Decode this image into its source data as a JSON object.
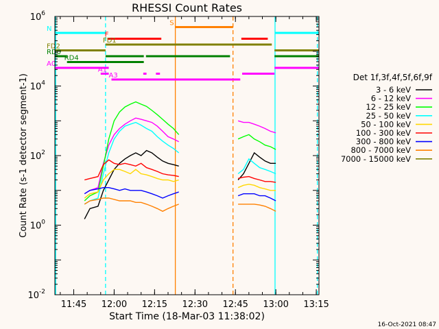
{
  "chart_data": {
    "type": "line",
    "title": "RHESSI Count Rates",
    "xlabel": "Start Time (18-Mar-03 11:38:02)",
    "ylabel": "Count Rate (s-1 detector segment-1)",
    "y_scale": "log",
    "ylim": [
      0.01,
      1000000
    ],
    "xlim_minutes_since_start": [
      0,
      98
    ],
    "x_ticks": [
      {
        "min": 7,
        "label": "11:45"
      },
      {
        "min": 22,
        "label": "12:00"
      },
      {
        "min": 37,
        "label": "12:15"
      },
      {
        "min": 52,
        "label": "12:30"
      },
      {
        "min": 67,
        "label": "12:45"
      },
      {
        "min": 82,
        "label": "13:00"
      },
      {
        "min": 97,
        "label": "13:15"
      }
    ],
    "y_ticks": [
      {
        "value": 0.01,
        "label": "10^-2"
      },
      {
        "value": 1,
        "label": "10^0"
      },
      {
        "value": 100,
        "label": "10^2"
      },
      {
        "value": 10000,
        "label": "10^4"
      },
      {
        "value": 1000000,
        "label": "10^6"
      }
    ],
    "legend_title": "Det 1f,3f,4f,5f,6f,9f",
    "legend_position": "right",
    "series": [
      {
        "name": "3 - 6 keV",
        "color": "#000000",
        "segments": [
          [
            [
              11,
              1.5
            ],
            [
              13,
              3
            ],
            [
              16,
              3.5
            ],
            [
              18,
              10
            ],
            [
              20,
              20
            ],
            [
              22,
              40
            ],
            [
              24,
              60
            ],
            [
              26,
              80
            ],
            [
              28,
              100
            ],
            [
              30,
              120
            ],
            [
              32,
              100
            ],
            [
              34,
              140
            ],
            [
              36,
              120
            ],
            [
              38,
              90
            ],
            [
              40,
              70
            ],
            [
              42,
              60
            ],
            [
              44,
              55
            ],
            [
              46,
              50
            ]
          ],
          [
            [
              68,
              20
            ],
            [
              70,
              30
            ],
            [
              72,
              60
            ],
            [
              74,
              120
            ],
            [
              76,
              90
            ],
            [
              78,
              70
            ],
            [
              80,
              60
            ],
            [
              82,
              60
            ]
          ]
        ]
      },
      {
        "name": "6 - 12 keV",
        "color": "#ff00ff",
        "segments": [
          [
            [
              11,
              8
            ],
            [
              13,
              10
            ],
            [
              16,
              12
            ],
            [
              18,
              60
            ],
            [
              20,
              200
            ],
            [
              22,
              400
            ],
            [
              24,
              600
            ],
            [
              26,
              800
            ],
            [
              28,
              1000
            ],
            [
              30,
              1200
            ],
            [
              32,
              1100
            ],
            [
              34,
              1000
            ],
            [
              36,
              900
            ],
            [
              38,
              700
            ],
            [
              40,
              500
            ],
            [
              42,
              350
            ],
            [
              44,
              300
            ],
            [
              46,
              250
            ]
          ],
          [
            [
              68,
              1000
            ],
            [
              70,
              900
            ],
            [
              72,
              900
            ],
            [
              74,
              800
            ],
            [
              76,
              700
            ],
            [
              78,
              600
            ],
            [
              80,
              500
            ],
            [
              82,
              450
            ]
          ]
        ]
      },
      {
        "name": "12 - 25 keV",
        "color": "#00ff00",
        "segments": [
          [
            [
              11,
              5
            ],
            [
              13,
              7
            ],
            [
              16,
              9
            ],
            [
              18,
              50
            ],
            [
              20,
              300
            ],
            [
              22,
              1000
            ],
            [
              24,
              1800
            ],
            [
              26,
              2500
            ],
            [
              28,
              3000
            ],
            [
              30,
              3500
            ],
            [
              32,
              3000
            ],
            [
              34,
              2600
            ],
            [
              36,
              2000
            ],
            [
              38,
              1500
            ],
            [
              40,
              1100
            ],
            [
              42,
              800
            ],
            [
              44,
              600
            ],
            [
              46,
              400
            ]
          ],
          [
            [
              68,
              300
            ],
            [
              70,
              350
            ],
            [
              72,
              400
            ],
            [
              74,
              300
            ],
            [
              76,
              250
            ],
            [
              78,
              200
            ],
            [
              80,
              180
            ],
            [
              82,
              150
            ]
          ]
        ]
      },
      {
        "name": "25 - 50 keV",
        "color": "#00ffff",
        "segments": [
          [
            [
              11,
              4
            ],
            [
              13,
              5
            ],
            [
              16,
              6
            ],
            [
              18,
              30
            ],
            [
              20,
              120
            ],
            [
              22,
              300
            ],
            [
              24,
              500
            ],
            [
              26,
              700
            ],
            [
              28,
              800
            ],
            [
              30,
              900
            ],
            [
              32,
              750
            ],
            [
              34,
              600
            ],
            [
              36,
              500
            ],
            [
              38,
              350
            ],
            [
              40,
              260
            ],
            [
              42,
              200
            ],
            [
              44,
              160
            ],
            [
              46,
              120
            ]
          ],
          [
            [
              68,
              30
            ],
            [
              70,
              40
            ],
            [
              72,
              80
            ],
            [
              74,
              60
            ],
            [
              76,
              45
            ],
            [
              78,
              40
            ],
            [
              80,
              35
            ],
            [
              82,
              30
            ]
          ]
        ]
      },
      {
        "name": "50 - 100 keV",
        "color": "#ffd700",
        "segments": [
          [
            [
              11,
              6
            ],
            [
              13,
              8
            ],
            [
              16,
              9
            ],
            [
              18,
              20
            ],
            [
              20,
              30
            ],
            [
              22,
              40
            ],
            [
              24,
              40
            ],
            [
              26,
              35
            ],
            [
              28,
              30
            ],
            [
              30,
              40
            ],
            [
              32,
              30
            ],
            [
              34,
              28
            ],
            [
              36,
              25
            ],
            [
              38,
              22
            ],
            [
              40,
              20
            ],
            [
              42,
              20
            ],
            [
              44,
              18
            ],
            [
              46,
              20
            ]
          ],
          [
            [
              68,
              12
            ],
            [
              70,
              14
            ],
            [
              72,
              15
            ],
            [
              74,
              14
            ],
            [
              76,
              12
            ],
            [
              78,
              11
            ],
            [
              80,
              10
            ],
            [
              82,
              10
            ]
          ]
        ]
      },
      {
        "name": "100 - 300 keV",
        "color": "#ff0000",
        "segments": [
          [
            [
              11,
              20
            ],
            [
              13,
              22
            ],
            [
              16,
              25
            ],
            [
              18,
              55
            ],
            [
              20,
              75
            ],
            [
              22,
              60
            ],
            [
              24,
              55
            ],
            [
              26,
              60
            ],
            [
              28,
              55
            ],
            [
              30,
              50
            ],
            [
              32,
              60
            ],
            [
              34,
              45
            ],
            [
              36,
              40
            ],
            [
              38,
              35
            ],
            [
              40,
              30
            ],
            [
              42,
              28
            ],
            [
              44,
              27
            ],
            [
              46,
              25
            ]
          ],
          [
            [
              68,
              22
            ],
            [
              70,
              24
            ],
            [
              72,
              25
            ],
            [
              74,
              22
            ],
            [
              76,
              20
            ],
            [
              78,
              18
            ],
            [
              80,
              18
            ],
            [
              82,
              17
            ]
          ]
        ]
      },
      {
        "name": "300 - 800 keV",
        "color": "#0000ff",
        "segments": [
          [
            [
              11,
              8
            ],
            [
              13,
              10
            ],
            [
              16,
              11
            ],
            [
              18,
              12
            ],
            [
              20,
              12
            ],
            [
              22,
              11
            ],
            [
              24,
              10
            ],
            [
              26,
              11
            ],
            [
              28,
              10
            ],
            [
              30,
              10
            ],
            [
              32,
              10
            ],
            [
              34,
              9
            ],
            [
              36,
              8
            ],
            [
              38,
              7
            ],
            [
              40,
              6
            ],
            [
              42,
              7
            ],
            [
              44,
              8
            ],
            [
              46,
              9
            ]
          ],
          [
            [
              68,
              7
            ],
            [
              70,
              8
            ],
            [
              72,
              8
            ],
            [
              74,
              8
            ],
            [
              76,
              7
            ],
            [
              78,
              7
            ],
            [
              80,
              6
            ],
            [
              82,
              5
            ]
          ]
        ]
      },
      {
        "name": "800 - 7000 keV",
        "color": "#ff8000",
        "segments": [
          [
            [
              11,
              4
            ],
            [
              13,
              5
            ],
            [
              16,
              5.5
            ],
            [
              18,
              6
            ],
            [
              20,
              6
            ],
            [
              22,
              5.5
            ],
            [
              24,
              5
            ],
            [
              26,
              5
            ],
            [
              28,
              5
            ],
            [
              30,
              4.5
            ],
            [
              32,
              4.5
            ],
            [
              34,
              4
            ],
            [
              36,
              3.5
            ],
            [
              38,
              3
            ],
            [
              40,
              2.5
            ],
            [
              42,
              3
            ],
            [
              44,
              3.5
            ],
            [
              46,
              4
            ]
          ],
          [
            [
              68,
              4
            ],
            [
              70,
              4
            ],
            [
              72,
              4
            ],
            [
              74,
              4
            ],
            [
              76,
              3.8
            ],
            [
              78,
              3.5
            ],
            [
              80,
              3
            ],
            [
              82,
              2.5
            ]
          ]
        ]
      },
      {
        "name": "7000 - 15000 keV",
        "color": "#808000",
        "segments": []
      }
    ],
    "vertical_markers": [
      {
        "min": 0.3,
        "color": "#00ffff",
        "style": "solid"
      },
      {
        "min": 18.8,
        "color": "#00ffff",
        "style": "dashed"
      },
      {
        "min": 44.7,
        "color": "#ff8000",
        "style": "solid"
      },
      {
        "min": 66.1,
        "color": "#ff8000",
        "style": "dashed"
      },
      {
        "min": 81.7,
        "color": "#00ffff",
        "style": "solid"
      },
      {
        "min": 97.4,
        "color": "#00ffff",
        "style": "dashed"
      }
    ],
    "flag_bars": [
      {
        "label": "N",
        "color": "#00ffff",
        "label_color": "#00ffff",
        "level": 0,
        "spans": [
          [
            0,
            18.8
          ],
          [
            81.7,
            98
          ]
        ]
      },
      {
        "label": "S",
        "color": "#ff8000",
        "label_color": "#ff8000",
        "level": -1,
        "spans": [
          [
            44.7,
            66.1
          ]
        ]
      },
      {
        "label": "F",
        "color": "#ff0000",
        "label_color": "#ff0000",
        "level": 1,
        "spans": [
          [
            19.5,
            39.5
          ],
          [
            69.2,
            79
          ]
        ]
      },
      {
        "label": "FD1",
        "color": "#808000",
        "label_color": "#808000",
        "level": 2,
        "spans": [
          [
            18.8,
            80.5
          ]
        ]
      },
      {
        "label": "FD2",
        "color": "#808000",
        "label_color": "#808000",
        "level": 3,
        "spans": [
          [
            0,
            18.8
          ],
          [
            81.5,
            98
          ]
        ]
      },
      {
        "label": "RD0",
        "color": "#008000",
        "label_color": "#008000",
        "level": 4,
        "spans": [
          [
            0,
            4.5
          ],
          [
            18.8,
            33
          ],
          [
            33.8,
            65
          ],
          [
            81.5,
            98
          ]
        ]
      },
      {
        "label": "RD4",
        "color": "#008000",
        "label_color": "#008000",
        "level": 5,
        "spans": [
          [
            4.5,
            33
          ]
        ]
      },
      {
        "label": "A0",
        "color": "#ff00ff",
        "label_color": "#ff00ff",
        "level": 6,
        "spans": [
          [
            0,
            20
          ],
          [
            81.5,
            98
          ]
        ]
      },
      {
        "label": "A1",
        "color": "#ff00ff",
        "label_color": "#ff00ff",
        "level": 7,
        "spans": [
          [
            17,
            20
          ],
          [
            32.8,
            34
          ],
          [
            37.5,
            39
          ],
          [
            69.5,
            81.5
          ]
        ]
      },
      {
        "label": "A3",
        "color": "#ff00ff",
        "label_color": "#ff00ff",
        "level": 8,
        "spans": [
          [
            21,
            68.8
          ]
        ]
      }
    ]
  },
  "footer": {
    "date_stamp": "16-Oct-2021 08:47"
  }
}
